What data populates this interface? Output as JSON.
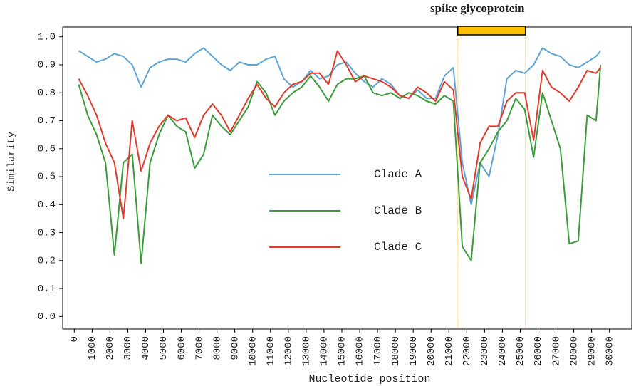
{
  "chart_data": {
    "type": "line",
    "xlabel": "Nucleotide position",
    "ylabel": "Similarity",
    "annotation": {
      "text": "spike glycoprotein",
      "start": 21500,
      "end": 25290,
      "color": "#ffc000"
    },
    "legend_position": "center",
    "xlim": [
      -650,
      31250
    ],
    "ylim": [
      -0.045,
      1.035
    ],
    "xticks": [
      0,
      1000,
      2000,
      3000,
      4000,
      5000,
      6000,
      7000,
      8000,
      9000,
      10000,
      11000,
      12000,
      13000,
      14000,
      15000,
      16000,
      17000,
      18000,
      19000,
      20000,
      21000,
      22000,
      23000,
      24000,
      25000,
      26000,
      27000,
      28000,
      29000,
      30000
    ],
    "yticks": [
      {
        "value": 0,
        "label": "0.0"
      },
      0.1,
      0.2,
      0.3,
      0.4,
      0.5,
      0.6,
      0.7,
      0.8,
      0.9,
      {
        "value": 1,
        "label": "1.0"
      }
    ],
    "x": [
      250,
      750,
      1250,
      1750,
      2250,
      2750,
      3250,
      3750,
      4250,
      4750,
      5250,
      5750,
      6250,
      6750,
      7250,
      7750,
      8250,
      8750,
      9250,
      9750,
      10250,
      10750,
      11250,
      11750,
      12250,
      12750,
      13250,
      13750,
      14250,
      14750,
      15250,
      15750,
      16250,
      16750,
      17250,
      17750,
      18250,
      18750,
      19250,
      19750,
      20250,
      20750,
      21250,
      21750,
      22250,
      22750,
      23250,
      23750,
      24250,
      24750,
      25250,
      25750,
      26250,
      26750,
      27250,
      27750,
      28250,
      28750,
      29250,
      29500
    ],
    "series": [
      {
        "name": "Clade A",
        "color": "#5ea5d6",
        "values": [
          0.95,
          0.93,
          0.91,
          0.92,
          0.94,
          0.93,
          0.9,
          0.82,
          0.89,
          0.91,
          0.92,
          0.92,
          0.91,
          0.94,
          0.96,
          0.93,
          0.9,
          0.88,
          0.91,
          0.9,
          0.9,
          0.92,
          0.93,
          0.85,
          0.82,
          0.84,
          0.88,
          0.85,
          0.86,
          0.9,
          0.91,
          0.87,
          0.84,
          0.82,
          0.85,
          0.83,
          0.79,
          0.78,
          0.81,
          0.78,
          0.78,
          0.86,
          0.89,
          0.55,
          0.4,
          0.55,
          0.5,
          0.65,
          0.85,
          0.88,
          0.87,
          0.9,
          0.96,
          0.94,
          0.93,
          0.9,
          0.89,
          0.91,
          0.93,
          0.95
        ]
      },
      {
        "name": "Clade B",
        "color": "#3a9c3a",
        "values": [
          0.83,
          0.72,
          0.65,
          0.55,
          0.22,
          0.55,
          0.58,
          0.19,
          0.55,
          0.65,
          0.72,
          0.68,
          0.66,
          0.53,
          0.58,
          0.72,
          0.68,
          0.65,
          0.7,
          0.75,
          0.84,
          0.8,
          0.72,
          0.77,
          0.8,
          0.82,
          0.86,
          0.82,
          0.77,
          0.83,
          0.85,
          0.85,
          0.86,
          0.8,
          0.79,
          0.8,
          0.78,
          0.8,
          0.79,
          0.77,
          0.76,
          0.79,
          0.77,
          0.25,
          0.2,
          0.55,
          0.6,
          0.66,
          0.7,
          0.78,
          0.74,
          0.57,
          0.8,
          0.7,
          0.6,
          0.26,
          0.27,
          0.72,
          0.7,
          0.9
        ]
      },
      {
        "name": "Clade C",
        "color": "#e03a2a",
        "values": [
          0.85,
          0.79,
          0.72,
          0.62,
          0.55,
          0.35,
          0.7,
          0.52,
          0.62,
          0.68,
          0.72,
          0.7,
          0.71,
          0.64,
          0.72,
          0.76,
          0.72,
          0.66,
          0.72,
          0.78,
          0.83,
          0.78,
          0.75,
          0.8,
          0.83,
          0.84,
          0.87,
          0.87,
          0.83,
          0.95,
          0.9,
          0.84,
          0.86,
          0.85,
          0.84,
          0.82,
          0.79,
          0.78,
          0.82,
          0.8,
          0.77,
          0.84,
          0.81,
          0.5,
          0.42,
          0.62,
          0.68,
          0.68,
          0.77,
          0.8,
          0.8,
          0.63,
          0.88,
          0.82,
          0.8,
          0.77,
          0.82,
          0.88,
          0.87,
          0.89
        ]
      }
    ]
  }
}
